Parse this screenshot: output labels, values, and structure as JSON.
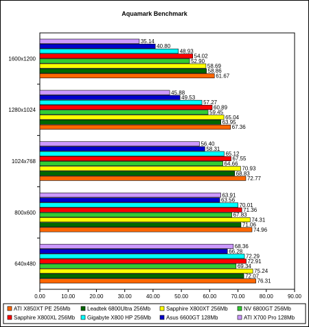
{
  "chart_data": {
    "type": "bar",
    "orientation": "horizontal",
    "title": "Aquamark Benchmark",
    "categories": [
      "1600x1200",
      "1280x1024",
      "1024x768",
      "800x600",
      "640x480"
    ],
    "xlim": [
      0,
      90
    ],
    "xticks": [
      "0.00",
      "10.00",
      "20.00",
      "30.00",
      "40.00",
      "50.00",
      "60.00",
      "70.00",
      "80.00",
      "90.00"
    ],
    "grid": false,
    "legend_position": "bottom",
    "series": [
      {
        "name": "ATI X700 Pro 128Mb",
        "color": "#CC99FF",
        "values": [
          35.14,
          45.88,
          56.4,
          63.91,
          68.36
        ]
      },
      {
        "name": "Asus 6600GT 128Mb",
        "color": "#0000CC",
        "values": [
          40.8,
          49.53,
          58.31,
          63.56,
          66.28
        ]
      },
      {
        "name": "Gigabyte X800 HP 256Mb",
        "color": "#00FFFF",
        "values": [
          48.93,
          57.27,
          65.12,
          70.01,
          72.29
        ]
      },
      {
        "name": "Sapphire X800XL 256Mb",
        "color": "#FF0000",
        "values": [
          54.02,
          60.89,
          67.55,
          71.36,
          72.91
        ]
      },
      {
        "name": "NV 6800GT 256Mb",
        "color": "#33CC33",
        "values": [
          52.9,
          59.45,
          64.66,
          67.83,
          69.34
        ]
      },
      {
        "name": "Sapphire X800XT 256Mb",
        "color": "#FFFF00",
        "values": [
          58.69,
          65.04,
          70.93,
          74.31,
          75.24
        ]
      },
      {
        "name": "Leadtek 6800Ultra 256Mb",
        "color": "#006600",
        "values": [
          58.86,
          63.95,
          68.83,
          71.06,
          72.07
        ]
      },
      {
        "name": "ATI X850XT PE 256Mb",
        "color": "#FF6600",
        "values": [
          61.67,
          67.36,
          72.77,
          74.96,
          76.31
        ]
      }
    ],
    "legend_order": [
      "ATI X850XT PE 256Mb",
      "Leadtek 6800Ultra 256Mb",
      "Sapphire X800XT 256Mb",
      "NV 6800GT 256Mb",
      "Sapphire X800XL 256Mb",
      "Gigabyte X800 HP 256Mb",
      "Asus 6600GT 128Mb",
      "ATI X700 Pro 128Mb"
    ]
  }
}
